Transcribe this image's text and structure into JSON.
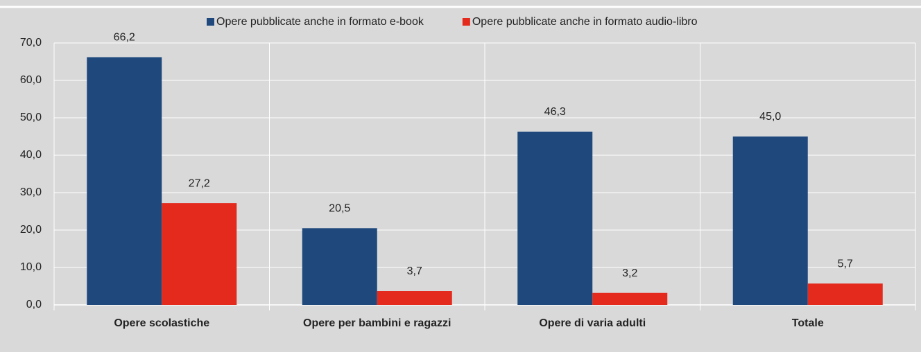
{
  "chart_data": {
    "type": "bar",
    "categories": [
      "Opere scolastiche",
      "Opere per bambini e ragazzi",
      "Opere di varia adulti",
      "Totale"
    ],
    "series": [
      {
        "name": "Opere pubblicate anche in formato e-book",
        "color": "#1f497d",
        "values": [
          66.2,
          20.5,
          46.3,
          45.0
        ],
        "value_labels": [
          "66,2",
          "20,5",
          "46,3",
          "45,0"
        ]
      },
      {
        "name": "Opere pubblicate anche in formato audio-libro",
        "color": "#e32a1c",
        "values": [
          27.2,
          3.7,
          3.2,
          5.7
        ],
        "value_labels": [
          "27,2",
          "3,7",
          "3,2",
          "5,7"
        ]
      }
    ],
    "ylim": [
      0,
      70
    ],
    "yticks": [
      {
        "value": 0,
        "label": "0,0"
      },
      {
        "value": 10,
        "label": "10,0"
      },
      {
        "value": 20,
        "label": "20,0"
      },
      {
        "value": 30,
        "label": "30,0"
      },
      {
        "value": 40,
        "label": "40,0"
      },
      {
        "value": 50,
        "label": "50,0"
      },
      {
        "value": 60,
        "label": "60,0"
      },
      {
        "value": 70,
        "label": "70,0"
      }
    ],
    "grid": true,
    "legend": "top"
  }
}
